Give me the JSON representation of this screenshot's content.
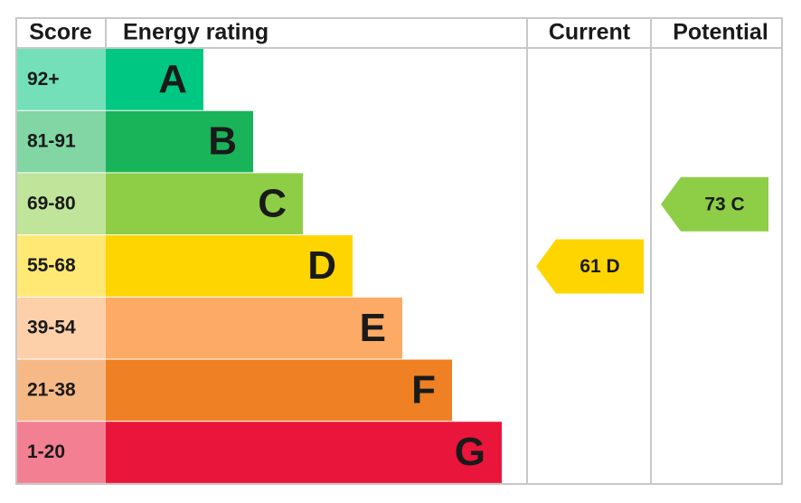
{
  "header": {
    "score": "Score",
    "energy_rating": "Energy rating",
    "current": "Current",
    "potential": "Potential"
  },
  "bands": [
    {
      "score": "92+",
      "letter": "A",
      "color": "#00c781"
    },
    {
      "score": "81-91",
      "letter": "B",
      "color": "#19b459"
    },
    {
      "score": "69-80",
      "letter": "C",
      "color": "#8dce46"
    },
    {
      "score": "55-68",
      "letter": "D",
      "color": "#ffd500"
    },
    {
      "score": "39-54",
      "letter": "E",
      "color": "#fcaa65"
    },
    {
      "score": "21-38",
      "letter": "F",
      "color": "#ef8023"
    },
    {
      "score": "1-20",
      "letter": "G",
      "color": "#e9153b"
    }
  ],
  "current": {
    "label": "61 D"
  },
  "potential": {
    "label": "73 C"
  }
}
